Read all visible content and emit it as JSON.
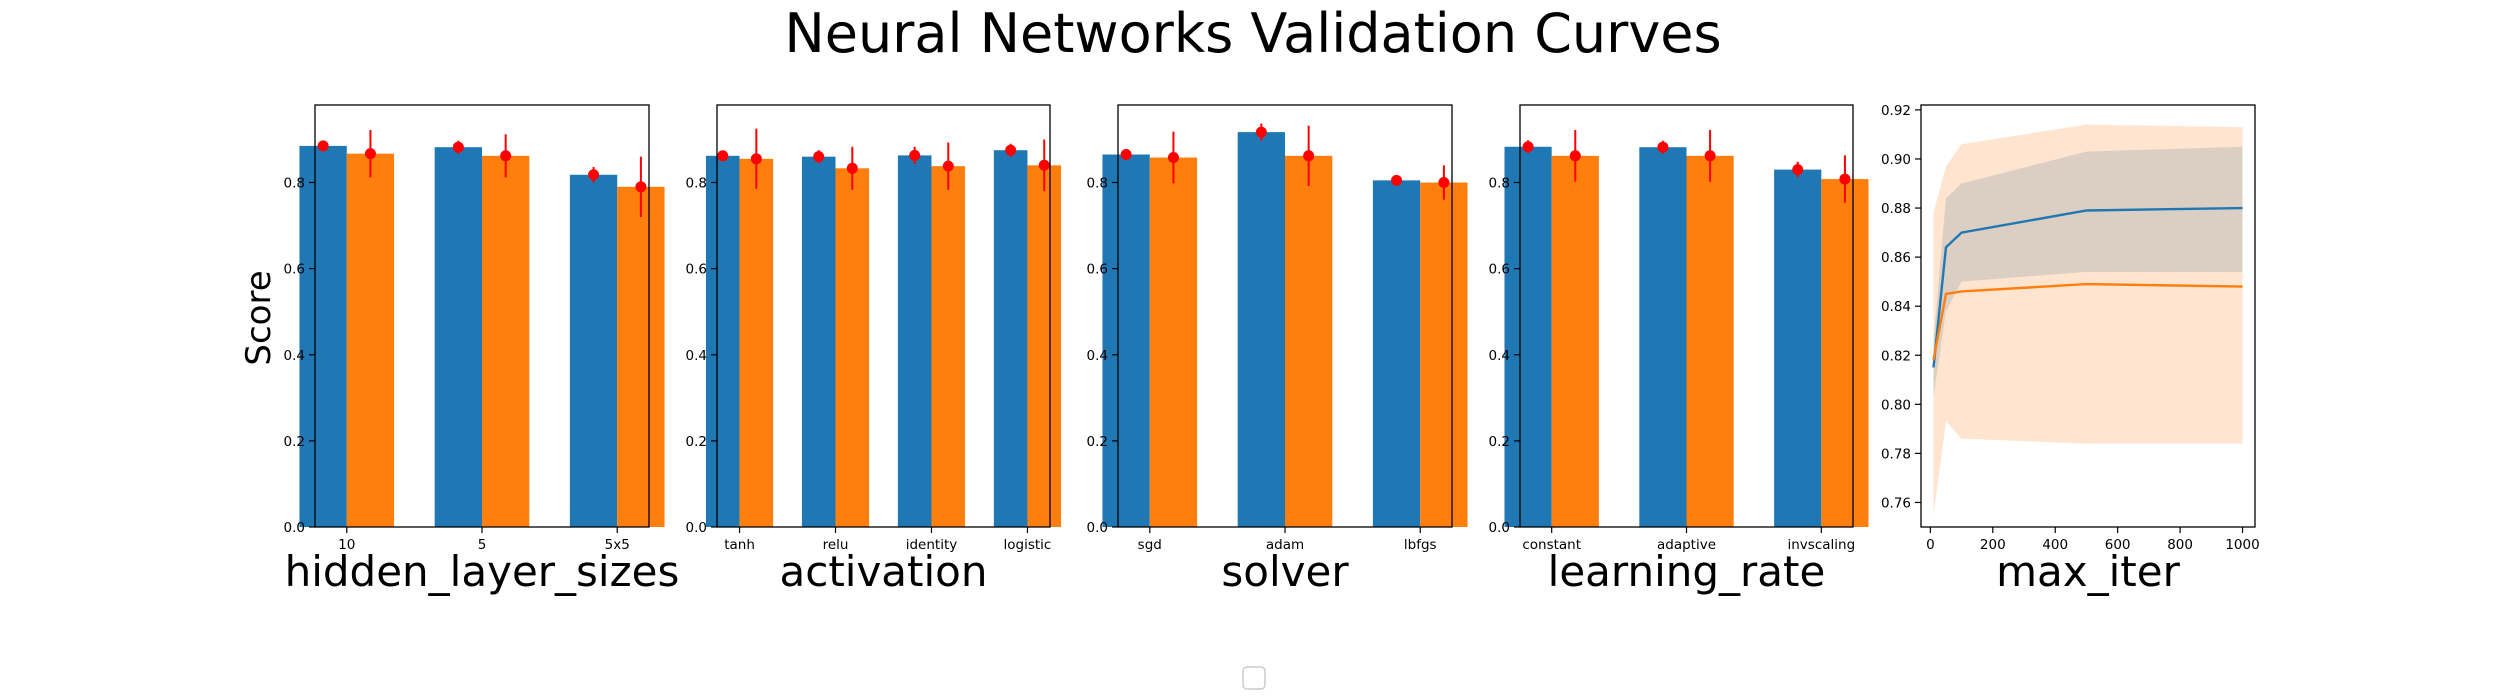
{
  "title": "Neural Networks Validation Curves",
  "ylabel": "Score",
  "colors": {
    "train": "#1f77b4",
    "test": "#ff7f0e",
    "error": "#ff0000"
  },
  "chart_data": [
    {
      "type": "bar",
      "xlabel": "hidden_layer_sizes",
      "categories": [
        "10",
        "5",
        "5x5"
      ],
      "ylim": [
        0,
        0.98
      ],
      "yticks": [
        "0.0",
        "0.2",
        "0.4",
        "0.6",
        "0.8"
      ],
      "series": [
        {
          "values": [
            0.885,
            0.882,
            0.818
          ],
          "errors": [
            0.012,
            0.015,
            0.018
          ]
        },
        {
          "values": [
            0.867,
            0.862,
            0.79
          ],
          "errors": [
            0.055,
            0.05,
            0.07
          ]
        }
      ]
    },
    {
      "type": "bar",
      "xlabel": "activation",
      "categories": [
        "tanh",
        "relu",
        "identity",
        "logistic"
      ],
      "ylim": [
        0,
        0.98
      ],
      "yticks": [
        "0.0",
        "0.2",
        "0.4",
        "0.6",
        "0.8"
      ],
      "series": [
        {
          "values": [
            0.862,
            0.86,
            0.863,
            0.875
          ],
          "errors": [
            0.012,
            0.015,
            0.02,
            0.015
          ]
        },
        {
          "values": [
            0.855,
            0.833,
            0.838,
            0.84
          ],
          "errors": [
            0.07,
            0.05,
            0.055,
            0.06
          ]
        }
      ]
    },
    {
      "type": "bar",
      "xlabel": "solver",
      "categories": [
        "sgd",
        "adam",
        "lbfgs"
      ],
      "ylim": [
        0,
        0.98
      ],
      "yticks": [
        "0.0",
        "0.2",
        "0.4",
        "0.6",
        "0.8"
      ],
      "series": [
        {
          "values": [
            0.865,
            0.917,
            0.805
          ],
          "errors": [
            0.012,
            0.02,
            0.008
          ]
        },
        {
          "values": [
            0.858,
            0.862,
            0.8
          ],
          "errors": [
            0.06,
            0.07,
            0.04
          ]
        }
      ]
    },
    {
      "type": "bar",
      "xlabel": "learning_rate",
      "categories": [
        "constant",
        "adaptive",
        "invscaling"
      ],
      "ylim": [
        0,
        0.98
      ],
      "yticks": [
        "0.0",
        "0.2",
        "0.4",
        "0.6",
        "0.8"
      ],
      "series": [
        {
          "values": [
            0.883,
            0.882,
            0.83
          ],
          "errors": [
            0.015,
            0.015,
            0.018
          ]
        },
        {
          "values": [
            0.862,
            0.862,
            0.808
          ],
          "errors": [
            0.06,
            0.06,
            0.055
          ]
        }
      ]
    },
    {
      "type": "line",
      "xlabel": "max_iter",
      "xlim": [
        -30,
        1040
      ],
      "ylim": [
        0.75,
        0.922
      ],
      "xticks": [
        0,
        200,
        400,
        600,
        800,
        1000
      ],
      "yticks": [
        0.76,
        0.78,
        0.8,
        0.82,
        0.84,
        0.86,
        0.88,
        0.9,
        0.92
      ],
      "series": [
        {
          "x": [
            10,
            50,
            100,
            500,
            1000
          ],
          "y": [
            0.815,
            0.864,
            0.87,
            0.879,
            0.88
          ],
          "y_lower": [
            0.803,
            0.838,
            0.85,
            0.854,
            0.854
          ],
          "y_upper": [
            0.826,
            0.884,
            0.89,
            0.903,
            0.905
          ]
        },
        {
          "x": [
            10,
            50,
            100,
            500,
            1000
          ],
          "y": [
            0.818,
            0.845,
            0.846,
            0.849,
            0.848
          ],
          "y_lower": [
            0.755,
            0.793,
            0.786,
            0.784,
            0.784
          ],
          "y_upper": [
            0.878,
            0.897,
            0.906,
            0.914,
            0.913
          ]
        }
      ]
    }
  ]
}
